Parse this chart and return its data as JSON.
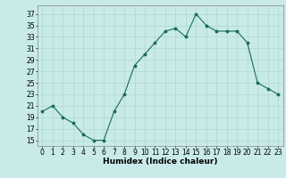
{
  "x": [
    0,
    1,
    2,
    3,
    4,
    5,
    6,
    7,
    8,
    9,
    10,
    11,
    12,
    13,
    14,
    15,
    16,
    17,
    18,
    19,
    20,
    21,
    22,
    23
  ],
  "y": [
    20,
    21,
    19,
    18,
    16,
    15,
    15,
    20,
    23,
    28,
    30,
    32,
    34,
    34.5,
    33,
    37,
    35,
    34,
    34,
    34,
    32,
    25,
    24,
    23
  ],
  "line_color": "#1a6b5a",
  "bg_color": "#c8eae8",
  "grid_color": "#afd8d5",
  "xlabel": "Humidex (Indice chaleur)",
  "xlim": [
    -0.5,
    23.5
  ],
  "ylim": [
    14,
    38.5
  ],
  "yticks": [
    15,
    17,
    19,
    21,
    23,
    25,
    27,
    29,
    31,
    33,
    35,
    37
  ],
  "xticks": [
    0,
    1,
    2,
    3,
    4,
    5,
    6,
    7,
    8,
    9,
    10,
    11,
    12,
    13,
    14,
    15,
    16,
    17,
    18,
    19,
    20,
    21,
    22,
    23
  ],
  "label_fontsize": 6.5,
  "tick_fontsize": 5.5
}
